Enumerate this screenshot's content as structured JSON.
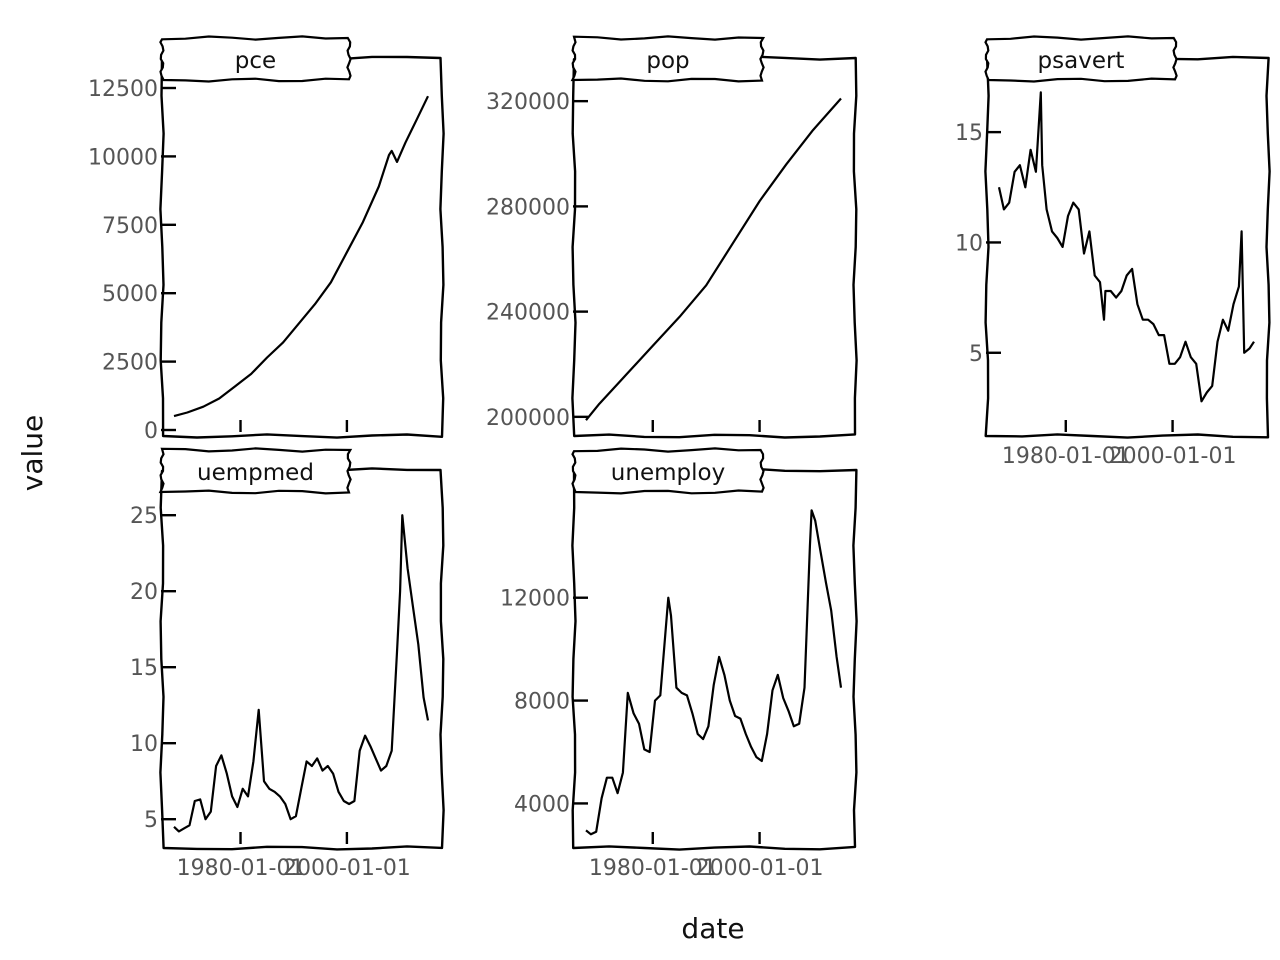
{
  "chart_data": {
    "type": "line",
    "layout": "facet_wrap",
    "xlabel": "date",
    "ylabel": "value",
    "x_tick_labels": [
      "1980-01-01",
      "2000-01-01"
    ],
    "x_range": [
      "1967-07-01",
      "2015-04-01"
    ],
    "panels": [
      {
        "name": "pce",
        "ylim": [
          0,
          12500
        ],
        "yticks": [
          0,
          2500,
          5000,
          7500,
          10000,
          12500
        ],
        "ytick_labels": [
          "0",
          "2500",
          "5000",
          "7500",
          "10000",
          "12500"
        ],
        "x": [
          "1967-07-01",
          "1970-01-01",
          "1973-01-01",
          "1976-01-01",
          "1979-01-01",
          "1982-01-01",
          "1985-01-01",
          "1988-01-01",
          "1991-01-01",
          "1994-01-01",
          "1997-01-01",
          "2000-01-01",
          "2003-01-01",
          "2006-01-01",
          "2007-12-01",
          "2008-06-01",
          "2009-06-01",
          "2011-01-01",
          "2013-01-01",
          "2015-04-01"
        ],
        "values": [
          507,
          640,
          850,
          1150,
          1600,
          2050,
          2650,
          3200,
          3900,
          4600,
          5400,
          6500,
          7600,
          8900,
          10050,
          10200,
          9800,
          10500,
          11300,
          12200
        ]
      },
      {
        "name": "pop",
        "ylim": [
          195000,
          325000
        ],
        "yticks": [
          200000,
          240000,
          280000,
          320000
        ],
        "ytick_labels": [
          "200000",
          "240000",
          "280000",
          "320000"
        ],
        "x": [
          "1967-07-01",
          "1970-01-01",
          "1975-01-01",
          "1980-01-01",
          "1985-01-01",
          "1990-01-01",
          "1995-01-01",
          "2000-01-01",
          "2005-01-01",
          "2010-01-01",
          "2015-04-01"
        ],
        "values": [
          198712,
          205000,
          216000,
          227000,
          238000,
          250000,
          266000,
          282000,
          296000,
          309000,
          321000
        ]
      },
      {
        "name": "psavert",
        "ylim": [
          1.5,
          17
        ],
        "yticks": [
          5,
          10,
          15
        ],
        "ytick_labels": [
          "5",
          "10",
          "15"
        ],
        "x": [
          "1967-07-01",
          "1968-06-01",
          "1969-06-01",
          "1970-06-01",
          "1971-06-01",
          "1972-06-01",
          "1973-06-01",
          "1974-06-01",
          "1975-05-01",
          "1975-08-01",
          "1976-06-01",
          "1977-06-01",
          "1978-06-01",
          "1979-06-01",
          "1980-06-01",
          "1981-06-01",
          "1982-06-01",
          "1983-06-01",
          "1984-06-01",
          "1985-06-01",
          "1986-06-01",
          "1987-03-01",
          "1987-06-01",
          "1988-06-01",
          "1989-06-01",
          "1990-06-01",
          "1991-06-01",
          "1992-06-01",
          "1993-06-01",
          "1994-06-01",
          "1995-06-01",
          "1996-06-01",
          "1997-06-01",
          "1998-06-01",
          "1999-06-01",
          "2000-06-01",
          "2001-06-01",
          "2002-06-01",
          "2003-06-01",
          "2004-06-01",
          "2005-06-01",
          "2006-06-01",
          "2007-06-01",
          "2008-06-01",
          "2009-06-01",
          "2010-06-01",
          "2011-06-01",
          "2012-06-01",
          "2012-12-01",
          "2013-06-01",
          "2014-06-01",
          "2015-04-01"
        ],
        "values": [
          12.5,
          11.5,
          11.8,
          13.2,
          13.5,
          12.5,
          14.2,
          13.2,
          16.8,
          13.5,
          11.5,
          10.5,
          10.2,
          9.8,
          11.2,
          11.8,
          11.5,
          9.5,
          10.5,
          8.5,
          8.2,
          6.5,
          7.8,
          7.8,
          7.5,
          7.8,
          8.5,
          8.8,
          7.2,
          6.5,
          6.5,
          6.3,
          5.8,
          5.8,
          4.5,
          4.5,
          4.8,
          5.5,
          4.8,
          4.5,
          2.8,
          3.2,
          3.5,
          5.5,
          6.5,
          6.0,
          7.2,
          8.0,
          10.5,
          5.0,
          5.2,
          5.5
        ]
      },
      {
        "name": "uempmed",
        "ylim": [
          3.5,
          26
        ],
        "yticks": [
          5,
          10,
          15,
          20,
          25
        ],
        "ytick_labels": [
          "5",
          "10",
          "15",
          "20",
          "25"
        ],
        "x": [
          "1967-07-01",
          "1968-06-01",
          "1969-06-01",
          "1970-06-01",
          "1971-06-01",
          "1972-06-01",
          "1973-06-01",
          "1974-06-01",
          "1975-06-01",
          "1976-06-01",
          "1977-06-01",
          "1978-06-01",
          "1979-06-01",
          "1980-06-01",
          "1981-06-01",
          "1982-06-01",
          "1983-06-01",
          "1984-06-01",
          "1985-06-01",
          "1986-06-01",
          "1987-06-01",
          "1988-06-01",
          "1989-06-01",
          "1990-06-01",
          "1991-06-01",
          "1992-06-01",
          "1993-06-01",
          "1994-06-01",
          "1995-06-01",
          "1996-06-01",
          "1997-06-01",
          "1998-06-01",
          "1999-06-01",
          "2000-06-01",
          "2001-06-01",
          "2002-06-01",
          "2003-06-01",
          "2004-06-01",
          "2005-06-01",
          "2006-06-01",
          "2007-06-01",
          "2008-06-01",
          "2009-06-01",
          "2010-01-01",
          "2010-06-01",
          "2011-06-01",
          "2012-06-01",
          "2013-06-01",
          "2014-06-01",
          "2015-04-01"
        ],
        "values": [
          4.5,
          4.2,
          4.4,
          4.6,
          6.2,
          6.3,
          5.0,
          5.5,
          8.5,
          9.2,
          8.0,
          6.5,
          5.8,
          7.0,
          6.5,
          8.8,
          12.2,
          7.5,
          7.0,
          6.8,
          6.5,
          6.0,
          5.0,
          5.2,
          7.0,
          8.8,
          8.5,
          9.0,
          8.2,
          8.5,
          8.0,
          6.8,
          6.2,
          6.0,
          6.2,
          9.5,
          10.5,
          9.8,
          9.0,
          8.2,
          8.5,
          9.5,
          16.0,
          20.0,
          25.0,
          21.5,
          19.0,
          16.5,
          13.0,
          11.5
        ]
      },
      {
        "name": "unemploy",
        "ylim": [
          2500,
          15800
        ],
        "yticks": [
          4000,
          8000,
          12000
        ],
        "ytick_labels": [
          "4000",
          "8000",
          "12000"
        ],
        "x": [
          "1967-07-01",
          "1968-06-01",
          "1969-06-01",
          "1970-06-01",
          "1971-06-01",
          "1972-06-01",
          "1973-06-01",
          "1974-06-01",
          "1975-05-01",
          "1976-06-01",
          "1977-06-01",
          "1978-06-01",
          "1979-06-01",
          "1980-06-01",
          "1981-06-01",
          "1982-12-01",
          "1983-06-01",
          "1984-06-01",
          "1985-06-01",
          "1986-06-01",
          "1987-06-01",
          "1988-06-01",
          "1989-06-01",
          "1990-06-01",
          "1991-06-01",
          "1992-06-01",
          "1993-06-01",
          "1994-06-01",
          "1995-06-01",
          "1996-06-01",
          "1997-06-01",
          "1998-06-01",
          "1999-06-01",
          "2000-06-01",
          "2001-06-01",
          "2002-06-01",
          "2003-06-01",
          "2004-06-01",
          "2005-06-01",
          "2006-06-01",
          "2007-06-01",
          "2008-06-01",
          "2009-06-01",
          "2009-10-01",
          "2010-06-01",
          "2011-06-01",
          "2012-06-01",
          "2013-06-01",
          "2014-06-01",
          "2015-04-01"
        ],
        "values": [
          2950,
          2800,
          2900,
          4200,
          5000,
          5000,
          4400,
          5200,
          8300,
          7500,
          7100,
          6100,
          6000,
          8000,
          8200,
          12000,
          11300,
          8500,
          8300,
          8200,
          7500,
          6700,
          6500,
          7000,
          8600,
          9700,
          9000,
          8000,
          7400,
          7300,
          6700,
          6200,
          5800,
          5650,
          6700,
          8400,
          9000,
          8100,
          7600,
          7000,
          7100,
          8500,
          14000,
          15400,
          15000,
          13800,
          12600,
          11500,
          9700,
          8500
        ]
      }
    ]
  }
}
